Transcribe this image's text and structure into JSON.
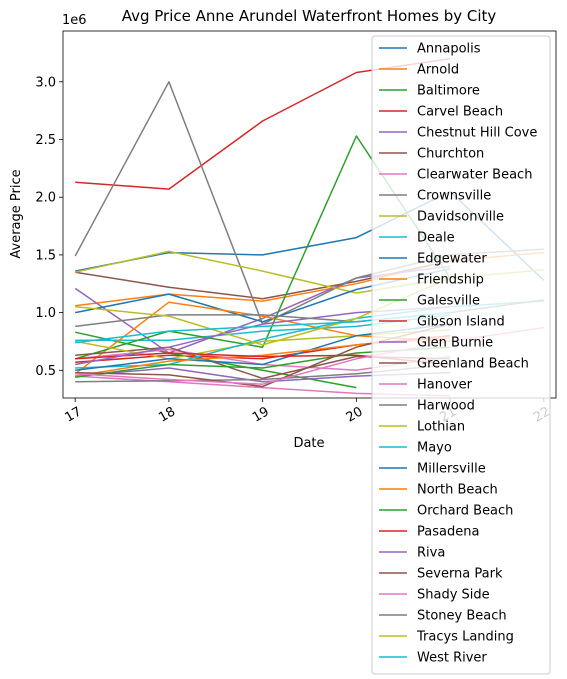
{
  "chart_data": {
    "type": "line",
    "title": "Avg Price Anne Arundel Waterfront Homes by City",
    "xlabel": "Date",
    "ylabel": "Average Price",
    "y_scale_label": "1e6",
    "x": [
      17,
      18,
      19,
      20,
      21,
      22
    ],
    "x_tick_labels": [
      "17",
      "18",
      "19",
      "20",
      "21",
      "22"
    ],
    "y_ticks": [
      0.5,
      1.0,
      1.5,
      2.0,
      2.5,
      3.0
    ],
    "y_tick_labels": [
      "0.5",
      "1.0",
      "1.5",
      "2.0",
      "2.5",
      "3.0"
    ],
    "xlim": [
      16.87,
      22.13
    ],
    "ylim": [
      0.26,
      3.44
    ],
    "grid": false,
    "legend_position": "right",
    "colors": [
      "#1f77b4",
      "#ff7f0e",
      "#2ca02c",
      "#d62728",
      "#9467bd",
      "#8c564b",
      "#e377c2",
      "#7f7f7f",
      "#bcbd22",
      "#17becf"
    ],
    "series": [
      {
        "name": "Annapolis",
        "values": [
          1.36,
          1.52,
          1.5,
          1.65,
          2.05,
          1.28
        ]
      },
      {
        "name": "Arnold",
        "values": [
          1.06,
          1.16,
          1.1,
          1.25,
          1.45,
          1.52
        ]
      },
      {
        "name": "Baltimore",
        "values": [
          0.83,
          0.65,
          0.5,
          0.35,
          null,
          null
        ]
      },
      {
        "name": "Carvel Beach",
        "values": [
          2.13,
          2.07,
          2.66,
          3.08,
          3.2,
          null
        ]
      },
      {
        "name": "Chestnut Hill Cove",
        "values": [
          1.21,
          0.65,
          0.95,
          1.3,
          1.4,
          null
        ]
      },
      {
        "name": "Churchton",
        "values": [
          1.35,
          1.22,
          1.12,
          1.27,
          1.45,
          null
        ]
      },
      {
        "name": "Clearwater Beach",
        "values": [
          0.6,
          0.68,
          0.55,
          0.5,
          0.62,
          null
        ]
      },
      {
        "name": "Crownsville",
        "values": [
          1.49,
          3.0,
          0.9,
          1.3,
          1.5,
          1.55
        ]
      },
      {
        "name": "Davidsonville",
        "values": [
          1.35,
          1.53,
          1.36,
          1.17,
          1.3,
          null
        ]
      },
      {
        "name": "Deale",
        "values": [
          0.76,
          0.76,
          0.84,
          0.88,
          0.98,
          null
        ]
      },
      {
        "name": "Edgewater",
        "values": [
          1.0,
          1.16,
          0.92,
          1.2,
          1.38,
          null
        ]
      },
      {
        "name": "Friendship",
        "values": [
          0.47,
          1.09,
          0.97,
          0.8,
          0.75,
          null
        ]
      },
      {
        "name": "Galesville",
        "values": [
          0.6,
          0.84,
          0.7,
          2.53,
          1.3,
          null
        ]
      },
      {
        "name": "Gibson Island",
        "values": [
          0.57,
          0.63,
          0.6,
          0.72,
          0.8,
          null
        ]
      },
      {
        "name": "Glen Burnie",
        "values": [
          0.45,
          0.52,
          0.4,
          0.45,
          0.48,
          null
        ]
      },
      {
        "name": "Greenland Beach",
        "values": [
          0.63,
          0.7,
          0.43,
          0.62,
          0.6,
          null
        ]
      },
      {
        "name": "Hanover",
        "values": [
          0.45,
          0.4,
          0.35,
          0.3,
          0.28,
          null
        ]
      },
      {
        "name": "Harwood",
        "values": [
          0.4,
          0.41,
          0.42,
          0.47,
          0.55,
          null
        ]
      },
      {
        "name": "Lothian",
        "values": [
          0.75,
          0.6,
          0.75,
          0.8,
          0.85,
          null
        ]
      },
      {
        "name": "Mayo",
        "values": [
          0.52,
          0.55,
          0.77,
          0.95,
          1.05,
          1.1
        ]
      },
      {
        "name": "Millersville",
        "values": [
          0.5,
          0.6,
          0.55,
          0.8,
          0.9,
          null
        ]
      },
      {
        "name": "North Beach",
        "values": [
          0.45,
          0.58,
          0.63,
          0.72,
          0.78,
          null
        ]
      },
      {
        "name": "Orchard Beach",
        "values": [
          0.44,
          0.55,
          0.52,
          0.65,
          0.7,
          null
        ]
      },
      {
        "name": "Pasadena",
        "values": [
          0.6,
          0.65,
          0.62,
          0.63,
          0.55,
          null
        ]
      },
      {
        "name": "Riva",
        "values": [
          0.55,
          0.7,
          0.9,
          1.0,
          1.05,
          null
        ]
      },
      {
        "name": "Severna Park",
        "values": [
          0.48,
          0.46,
          0.36,
          0.7,
          0.9,
          null
        ]
      },
      {
        "name": "Shady Side",
        "values": [
          0.47,
          0.42,
          0.38,
          0.6,
          0.75,
          0.87
        ]
      },
      {
        "name": "Stoney Beach",
        "values": [
          0.88,
          0.98,
          0.98,
          0.92,
          1.0,
          1.11
        ]
      },
      {
        "name": "Tracys Landing",
        "values": [
          1.05,
          0.97,
          0.72,
          0.95,
          1.3,
          1.37
        ]
      },
      {
        "name": "West River",
        "values": [
          0.74,
          0.84,
          0.88,
          0.92,
          1.0,
          null
        ]
      }
    ]
  }
}
